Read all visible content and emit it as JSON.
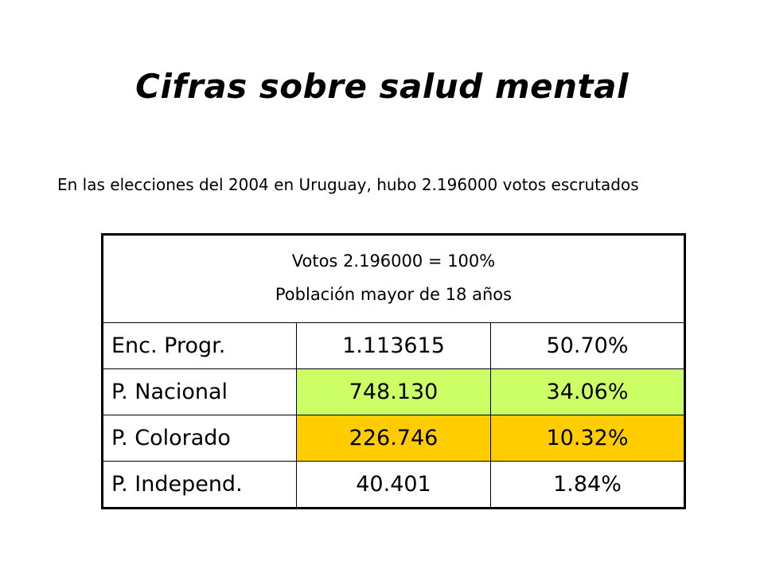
{
  "title": "Cifras sobre salud mental",
  "intro": "En las elecciones del 2004 en Uruguay, hubo 2.196000 votos escrutados",
  "table": {
    "header_line1": "Votos 2.196000 = 100%",
    "header_line2": "Población mayor de 18 años",
    "rows": [
      {
        "party": "Enc. Progr.",
        "votes": "1.113615",
        "percent": "50.70%",
        "color": "#ffffff"
      },
      {
        "party": "P. Nacional",
        "votes": "748.130",
        "percent": "34.06%",
        "color": "#ccff66"
      },
      {
        "party": "P. Colorado",
        "votes": "226.746",
        "percent": "10.32%",
        "color": "#ffcc00"
      },
      {
        "party": "P. Independ.",
        "votes": "40.401",
        "percent": "1.84%",
        "color": "#ffffff"
      }
    ]
  }
}
